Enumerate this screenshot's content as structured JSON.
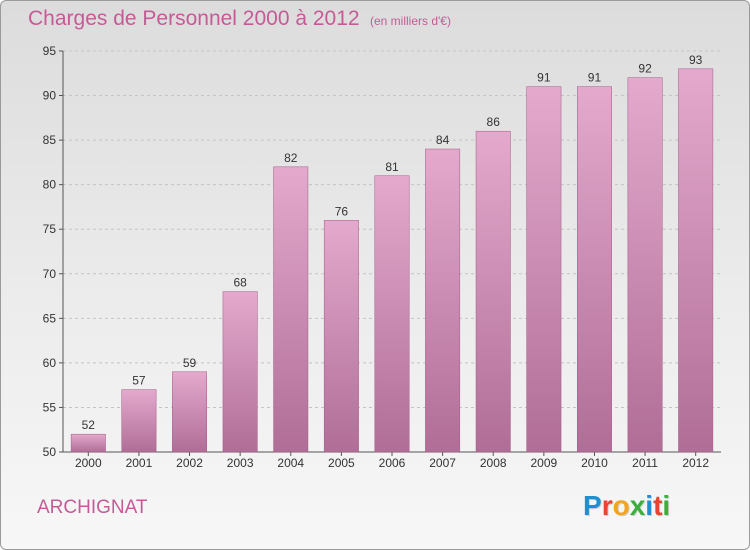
{
  "header": {
    "title": "Charges de Personnel 2000 à 2012",
    "subtitle": "(en milliers d'€)"
  },
  "footer": {
    "place": "ARCHIGNAT",
    "logo": {
      "letters": [
        "P",
        "r",
        "o",
        "x",
        "i",
        "t",
        "i"
      ],
      "colors": [
        "#1e90d2",
        "#e8452e",
        "#f0a51c",
        "#3cae3c",
        "#1e90d2",
        "#e8452e",
        "#3cae3c"
      ]
    }
  },
  "chart_data": {
    "type": "bar",
    "title": "Charges de Personnel 2000 à 2012",
    "subtitle": "(en milliers d'€)",
    "categories": [
      "2000",
      "2001",
      "2002",
      "2003",
      "2004",
      "2005",
      "2006",
      "2007",
      "2008",
      "2009",
      "2010",
      "2011",
      "2012"
    ],
    "values": [
      52,
      57,
      59,
      68,
      82,
      76,
      81,
      84,
      86,
      91,
      91,
      92,
      93
    ],
    "ylim": [
      50,
      95
    ],
    "yticks": [
      50,
      55,
      60,
      65,
      70,
      75,
      80,
      85,
      90,
      95
    ],
    "grid": "horizontal dashed",
    "bar_color_light": "#e4a9cd",
    "bar_color_dark": "#b06e97",
    "xlabel": "",
    "ylabel": ""
  }
}
